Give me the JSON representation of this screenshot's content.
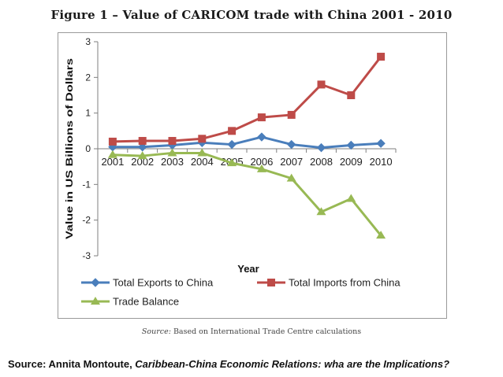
{
  "chart_data": {
    "type": "line",
    "title": "Figure 1 – Value of CARICOM trade with China 2001 - 2010",
    "xlabel": "Year",
    "ylabel": "Value in US Billions of Dollars",
    "ylim": [
      -3,
      3
    ],
    "yticks": [
      "3",
      "2",
      "1",
      "0",
      "-1",
      "-2",
      "-3"
    ],
    "categories": [
      "2001",
      "2002",
      "2003",
      "2004",
      "2005",
      "2006",
      "2007",
      "2008",
      "2009",
      "2010"
    ],
    "grid": false,
    "legend_position": "bottom",
    "series": [
      {
        "name": "Total Exports to China",
        "color": "#4a7ebb",
        "marker": "diamond",
        "values": [
          0.05,
          0.05,
          0.1,
          0.17,
          0.12,
          0.33,
          0.12,
          0.03,
          0.1,
          0.15
        ]
      },
      {
        "name": "Total Imports from China",
        "color": "#be4b48",
        "marker": "square",
        "values": [
          0.2,
          0.22,
          0.22,
          0.28,
          0.5,
          0.88,
          0.95,
          1.8,
          1.5,
          2.58
        ]
      },
      {
        "name": "Trade Balance",
        "color": "#98b954",
        "marker": "triangle",
        "values": [
          -0.17,
          -0.2,
          -0.12,
          -0.12,
          -0.4,
          -0.57,
          -0.83,
          -1.77,
          -1.4,
          -2.43
        ]
      }
    ]
  },
  "source_note": {
    "label": "Source:",
    "text": " Based on International Trade Centre calculations"
  },
  "citation": {
    "prefix": "Source: Annita Montoute, ",
    "title": "Caribbean-China Economic Relations: wha are the Implications?"
  }
}
